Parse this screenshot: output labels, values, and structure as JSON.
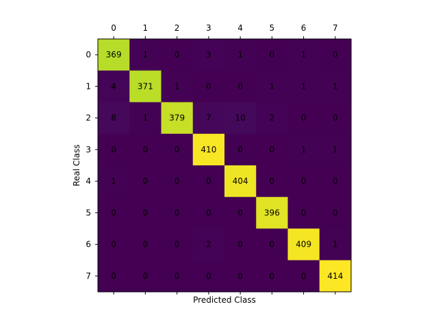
{
  "chart_data": {
    "type": "heatmap",
    "title": "",
    "xlabel": "Predicted Class",
    "ylabel": "Real Class",
    "x_ticks": [
      "0",
      "1",
      "2",
      "3",
      "4",
      "5",
      "6",
      "7"
    ],
    "y_ticks": [
      "0",
      "1",
      "2",
      "3",
      "4",
      "5",
      "6",
      "7"
    ],
    "x_tick_position": "top",
    "colormap": "viridis",
    "value_range": [
      0,
      414
    ],
    "matrix": [
      [
        369,
        1,
        0,
        3,
        1,
        0,
        1,
        0
      ],
      [
        4,
        371,
        1,
        0,
        0,
        1,
        1,
        1
      ],
      [
        8,
        1,
        379,
        7,
        10,
        2,
        0,
        0
      ],
      [
        0,
        0,
        0,
        410,
        0,
        0,
        1,
        1
      ],
      [
        1,
        0,
        0,
        0,
        404,
        0,
        0,
        0
      ],
      [
        0,
        0,
        0,
        0,
        0,
        396,
        0,
        0
      ],
      [
        0,
        0,
        0,
        2,
        0,
        0,
        409,
        1
      ],
      [
        0,
        0,
        0,
        0,
        0,
        0,
        0,
        414
      ]
    ]
  }
}
